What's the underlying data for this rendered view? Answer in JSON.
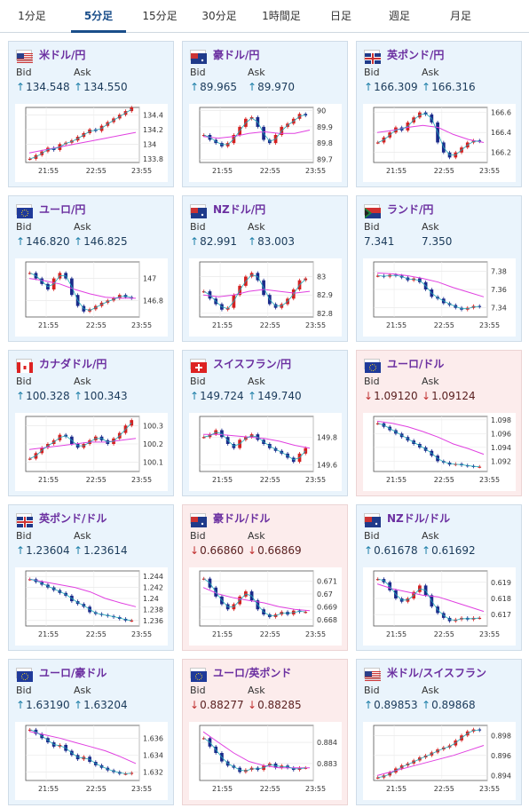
{
  "tabs": [
    {
      "label": "1分足",
      "active": false
    },
    {
      "label": "5分足",
      "active": true
    },
    {
      "label": "15分足",
      "active": false
    },
    {
      "label": "30分足",
      "active": false
    },
    {
      "label": "1時間足",
      "active": false
    },
    {
      "label": "日足",
      "active": false
    },
    {
      "label": "週足",
      "active": false
    },
    {
      "label": "月足",
      "active": false
    }
  ],
  "labels": {
    "bid": "Bid",
    "ask": "Ask"
  },
  "colors": {
    "up_arrow": "#1c7ea8",
    "down_arrow": "#c03030",
    "up_candle": "#d42020",
    "down_candle": "#1a2a8a",
    "ma_short": "#1fa8b8",
    "ma_long": "#e040e0"
  },
  "pairs": [
    {
      "name": "米ドル/円",
      "flag": "us-flag-icon",
      "bid": "134.548",
      "ask": "134.550",
      "dir": "up"
    },
    {
      "name": "豪ドル/円",
      "flag": "au-flag-icon",
      "bid": "89.965",
      "ask": "89.970",
      "dir": "up"
    },
    {
      "name": "英ポンド/円",
      "flag": "gb-flag-icon",
      "bid": "166.309",
      "ask": "166.316",
      "dir": "up"
    },
    {
      "name": "ユーロ/円",
      "flag": "eu-flag-icon",
      "bid": "146.820",
      "ask": "146.825",
      "dir": "up"
    },
    {
      "name": "NZドル/円",
      "flag": "nz-flag-icon",
      "bid": "82.991",
      "ask": "83.003",
      "dir": "up"
    },
    {
      "name": "ランド/円",
      "flag": "za-flag-icon",
      "bid": "7.341",
      "ask": "7.350",
      "dir": "none"
    },
    {
      "name": "カナダドル/円",
      "flag": "ca-flag-icon",
      "bid": "100.328",
      "ask": "100.343",
      "dir": "up"
    },
    {
      "name": "スイスフラン/円",
      "flag": "ch-flag-icon",
      "bid": "149.724",
      "ask": "149.740",
      "dir": "up"
    },
    {
      "name": "ユーロ/ドル",
      "flag": "eu-us-flag-icon",
      "bid": "1.09120",
      "ask": "1.09124",
      "dir": "down"
    },
    {
      "name": "英ポンド/ドル",
      "flag": "gb-us-flag-icon",
      "bid": "1.23604",
      "ask": "1.23614",
      "dir": "up"
    },
    {
      "name": "豪ドル/ドル",
      "flag": "au-us-flag-icon",
      "bid": "0.66860",
      "ask": "0.66869",
      "dir": "down"
    },
    {
      "name": "NZドル/ドル",
      "flag": "nz-us-flag-icon",
      "bid": "0.61678",
      "ask": "0.61692",
      "dir": "up"
    },
    {
      "name": "ユーロ/豪ドル",
      "flag": "eu-au-flag-icon",
      "bid": "1.63190",
      "ask": "1.63204",
      "dir": "up"
    },
    {
      "name": "ユーロ/英ポンド",
      "flag": "eu-gb-flag-icon",
      "bid": "0.88277",
      "ask": "0.88285",
      "dir": "down"
    },
    {
      "name": "米ドル/スイスフラン",
      "flag": "us-ch-flag-icon",
      "bid": "0.89853",
      "ask": "0.89868",
      "dir": "up"
    }
  ],
  "chart_data": [
    {
      "type": "candlestick",
      "pair": "米ドル/円",
      "x_ticks": [
        "21:55",
        "22:55",
        "23:55"
      ],
      "y_ticks": [
        "134.4",
        "134.2",
        "134",
        "133.8"
      ],
      "ylim": [
        133.75,
        134.5
      ],
      "close": [
        133.8,
        133.85,
        133.9,
        133.95,
        133.92,
        134.0,
        134.02,
        134.05,
        134.1,
        134.15,
        134.2,
        134.18,
        134.25,
        134.3,
        134.35,
        134.4,
        134.45,
        134.5
      ],
      "ma": [
        133.88,
        133.92,
        133.96,
        134.0,
        134.04,
        134.08,
        134.12,
        134.16
      ]
    },
    {
      "type": "candlestick",
      "pair": "豪ドル/円",
      "x_ticks": [
        "21:55",
        "22:55",
        "23:55"
      ],
      "y_ticks": [
        "90",
        "89.9",
        "89.8",
        "89.7"
      ],
      "ylim": [
        89.68,
        90.02
      ],
      "close": [
        89.85,
        89.82,
        89.8,
        89.78,
        89.8,
        89.85,
        89.9,
        89.95,
        89.96,
        89.9,
        89.82,
        89.8,
        89.85,
        89.9,
        89.92,
        89.95,
        89.98,
        89.97
      ],
      "ma": [
        89.84,
        89.83,
        89.84,
        89.86,
        89.87,
        89.86,
        89.86,
        89.88
      ]
    },
    {
      "type": "candlestick",
      "pair": "英ポンド/円",
      "x_ticks": [
        "21:55",
        "22:55",
        "23:55"
      ],
      "y_ticks": [
        "166.6",
        "166.4",
        "166.2"
      ],
      "ylim": [
        166.1,
        166.65
      ],
      "close": [
        166.3,
        166.35,
        166.4,
        166.45,
        166.42,
        166.5,
        166.55,
        166.6,
        166.58,
        166.5,
        166.3,
        166.2,
        166.15,
        166.2,
        166.25,
        166.3,
        166.32,
        166.31
      ],
      "ma": [
        166.4,
        166.42,
        166.45,
        166.47,
        166.45,
        166.38,
        166.33,
        166.3
      ]
    },
    {
      "type": "candlestick",
      "pair": "ユーロ/円",
      "x_ticks": [
        "21:55",
        "22:55",
        "23:55"
      ],
      "y_ticks": [
        "147",
        "146.8"
      ],
      "ylim": [
        146.65,
        147.15
      ],
      "close": [
        147.05,
        147.0,
        146.95,
        146.9,
        147.0,
        147.05,
        147.0,
        146.85,
        146.75,
        146.7,
        146.72,
        146.75,
        146.78,
        146.8,
        146.82,
        146.85,
        146.83,
        146.82
      ],
      "ma": [
        147.0,
        146.98,
        146.95,
        146.9,
        146.86,
        146.83,
        146.82,
        146.82
      ]
    },
    {
      "type": "candlestick",
      "pair": "NZドル/円",
      "x_ticks": [
        "21:55",
        "22:55",
        "23:55"
      ],
      "y_ticks": [
        "83",
        "82.9",
        "82.8"
      ],
      "ylim": [
        82.78,
        83.08
      ],
      "close": [
        82.92,
        82.88,
        82.85,
        82.82,
        82.83,
        82.9,
        82.95,
        83.0,
        83.02,
        82.98,
        82.9,
        82.85,
        82.83,
        82.85,
        82.88,
        82.93,
        82.98,
        82.99
      ],
      "ma": [
        82.9,
        82.89,
        82.9,
        82.92,
        82.93,
        82.92,
        82.91,
        82.92
      ]
    },
    {
      "type": "candlestick",
      "pair": "ランド/円",
      "x_ticks": [
        "21:55",
        "22:55",
        "23:55"
      ],
      "y_ticks": [
        "7.38",
        "7.36",
        "7.34"
      ],
      "ylim": [
        7.33,
        7.39
      ],
      "close": [
        7.375,
        7.374,
        7.376,
        7.375,
        7.373,
        7.37,
        7.372,
        7.368,
        7.36,
        7.352,
        7.35,
        7.345,
        7.343,
        7.34,
        7.338,
        7.34,
        7.342,
        7.341
      ],
      "ma": [
        7.378,
        7.377,
        7.375,
        7.372,
        7.368,
        7.362,
        7.357,
        7.352
      ]
    },
    {
      "type": "candlestick",
      "pair": "カナダドル/円",
      "x_ticks": [
        "21:55",
        "22:55",
        "23:55"
      ],
      "y_ticks": [
        "100.3",
        "100.2",
        "100.1"
      ],
      "ylim": [
        100.05,
        100.35
      ],
      "close": [
        100.12,
        100.15,
        100.18,
        100.2,
        100.22,
        100.25,
        100.24,
        100.2,
        100.18,
        100.2,
        100.22,
        100.24,
        100.22,
        100.2,
        100.23,
        100.26,
        100.3,
        100.33
      ],
      "ma": [
        100.17,
        100.18,
        100.19,
        100.2,
        100.21,
        100.21,
        100.22,
        100.23
      ]
    },
    {
      "type": "candlestick",
      "pair": "スイスフラン/円",
      "x_ticks": [
        "21:55",
        "22:55",
        "23:55"
      ],
      "y_ticks": [
        "149.8",
        "149.6"
      ],
      "ylim": [
        149.55,
        149.95
      ],
      "close": [
        149.8,
        149.82,
        149.85,
        149.8,
        149.75,
        149.72,
        149.78,
        149.8,
        149.82,
        149.78,
        149.75,
        149.72,
        149.7,
        149.68,
        149.65,
        149.62,
        149.68,
        149.72
      ],
      "ma": [
        149.82,
        149.82,
        149.81,
        149.8,
        149.79,
        149.77,
        149.74,
        149.72
      ]
    },
    {
      "type": "candlestick",
      "pair": "ユーロ/ドル",
      "x_ticks": [
        "21:55",
        "22:55",
        "23:55"
      ],
      "y_ticks": [
        "1.098",
        "1.096",
        "1.094",
        "1.092"
      ],
      "ylim": [
        1.0905,
        1.0985
      ],
      "close": [
        1.0975,
        1.097,
        1.0965,
        1.096,
        1.0955,
        1.095,
        1.0945,
        1.094,
        1.0935,
        1.0928,
        1.092,
        1.0918,
        1.0915,
        1.0916,
        1.0914,
        1.0913,
        1.0912,
        1.0912
      ],
      "ma": [
        1.0978,
        1.0975,
        1.097,
        1.0963,
        1.0955,
        1.0945,
        1.0938,
        1.093
      ]
    },
    {
      "type": "candlestick",
      "pair": "英ポンド/ドル",
      "x_ticks": [
        "21:55",
        "22:55",
        "23:55"
      ],
      "y_ticks": [
        "1.244",
        "1.242",
        "1.24",
        "1.238",
        "1.236"
      ],
      "ylim": [
        1.235,
        1.245
      ],
      "close": [
        1.2435,
        1.243,
        1.2425,
        1.242,
        1.2415,
        1.241,
        1.2405,
        1.2395,
        1.239,
        1.2385,
        1.2375,
        1.2372,
        1.237,
        1.2368,
        1.2366,
        1.2363,
        1.236,
        1.236
      ],
      "ma": [
        1.2435,
        1.243,
        1.2425,
        1.242,
        1.2412,
        1.24,
        1.2392,
        1.2385
      ]
    },
    {
      "type": "candlestick",
      "pair": "豪ドル/ドル",
      "x_ticks": [
        "21:55",
        "22:55",
        "23:55"
      ],
      "y_ticks": [
        "0.671",
        "0.67",
        "0.669",
        "0.668"
      ],
      "ylim": [
        0.6675,
        0.6718
      ],
      "close": [
        0.6712,
        0.6705,
        0.6698,
        0.6692,
        0.6688,
        0.6692,
        0.6698,
        0.6702,
        0.6695,
        0.6688,
        0.6684,
        0.6682,
        0.6684,
        0.6686,
        0.6684,
        0.6687,
        0.6686,
        0.6686
      ],
      "ma": [
        0.6705,
        0.67,
        0.6697,
        0.6695,
        0.6693,
        0.669,
        0.6688,
        0.6687
      ]
    },
    {
      "type": "candlestick",
      "pair": "NZドル/ドル",
      "x_ticks": [
        "21:55",
        "22:55",
        "23:55"
      ],
      "y_ticks": [
        "0.619",
        "0.618",
        "0.617"
      ],
      "ylim": [
        0.6163,
        0.6197
      ],
      "close": [
        0.6192,
        0.619,
        0.6185,
        0.618,
        0.6178,
        0.618,
        0.6184,
        0.6188,
        0.6182,
        0.6175,
        0.6171,
        0.6168,
        0.6166,
        0.6167,
        0.6168,
        0.6167,
        0.6168,
        0.6168
      ],
      "ma": [
        0.6189,
        0.6186,
        0.6184,
        0.6182,
        0.6181,
        0.6178,
        0.6175,
        0.6172
      ]
    },
    {
      "type": "candlestick",
      "pair": "ユーロ/豪ドル",
      "x_ticks": [
        "21:55",
        "22:55",
        "23:55"
      ],
      "y_ticks": [
        "1.636",
        "1.634",
        "1.632"
      ],
      "ylim": [
        1.631,
        1.6375
      ],
      "close": [
        1.637,
        1.6365,
        1.636,
        1.6355,
        1.635,
        1.6352,
        1.6345,
        1.634,
        1.6335,
        1.6338,
        1.6332,
        1.6328,
        1.6325,
        1.6322,
        1.632,
        1.6318,
        1.6318,
        1.6319
      ],
      "ma": [
        1.6368,
        1.6364,
        1.636,
        1.6355,
        1.635,
        1.6345,
        1.6338,
        1.633
      ]
    },
    {
      "type": "candlestick",
      "pair": "ユーロ/英ポンド",
      "x_ticks": [
        "21:55",
        "22:55",
        "23:55"
      ],
      "y_ticks": [
        "0.884",
        "0.883"
      ],
      "ylim": [
        0.8822,
        0.8848
      ],
      "close": [
        0.8842,
        0.8838,
        0.8835,
        0.8831,
        0.8829,
        0.8828,
        0.8826,
        0.8827,
        0.8828,
        0.8827,
        0.8829,
        0.883,
        0.8828,
        0.8829,
        0.8828,
        0.8827,
        0.8828,
        0.8828
      ],
      "ma": [
        0.8845,
        0.884,
        0.8835,
        0.8831,
        0.8829,
        0.8828,
        0.8828,
        0.8828
      ]
    },
    {
      "type": "candlestick",
      "pair": "米ドル/スイスフラン",
      "x_ticks": [
        "21:55",
        "22:55",
        "23:55"
      ],
      "y_ticks": [
        "0.898",
        "0.896",
        "0.894"
      ],
      "ylim": [
        0.8935,
        0.899
      ],
      "close": [
        0.8938,
        0.894,
        0.8943,
        0.8947,
        0.895,
        0.8952,
        0.8955,
        0.8958,
        0.896,
        0.8963,
        0.8966,
        0.8968,
        0.897,
        0.8975,
        0.898,
        0.8984,
        0.8986,
        0.8985
      ],
      "ma": [
        0.894,
        0.8944,
        0.8948,
        0.8952,
        0.8956,
        0.896,
        0.8965,
        0.897
      ]
    }
  ]
}
